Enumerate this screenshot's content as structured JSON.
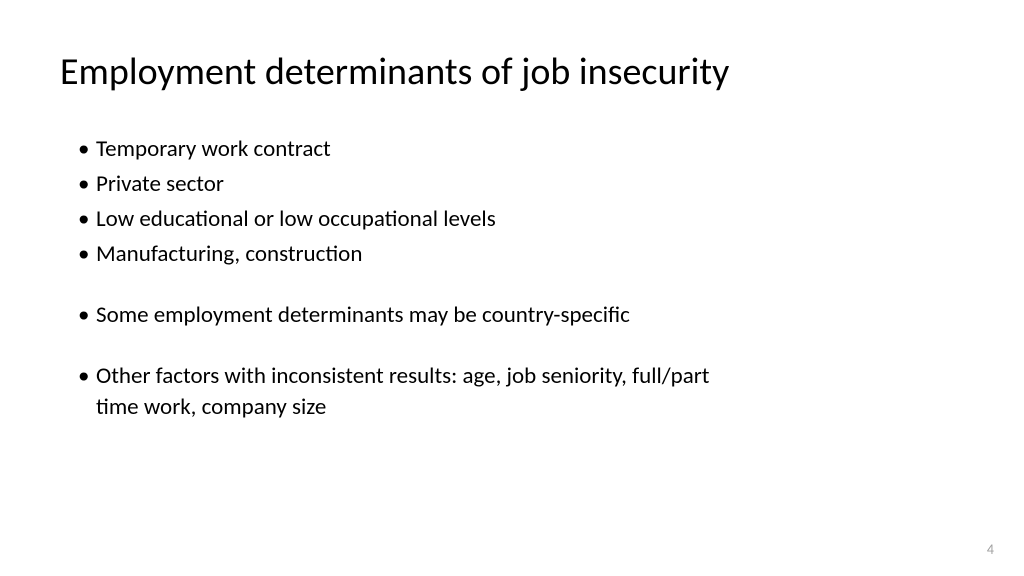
{
  "slide": {
    "title": "Employment determinants of job insecurity",
    "bullets": {
      "b1": "Temporary work contract",
      "b2": "Private sector",
      "b3": "Low educational or low occupational levels",
      "b4": "Manufacturing, construction",
      "b5": "Some employment determinants may be country-specific",
      "b6_line1": "Other factors with inconsistent results: age, job seniority, full/part",
      "b6_line2": "time work, company size"
    },
    "page_number": "4",
    "background_color": "#ffffff",
    "text_color": "#000000",
    "page_number_color": "#a0a0a0",
    "title_fontsize": 38,
    "bullet_fontsize": 23
  }
}
